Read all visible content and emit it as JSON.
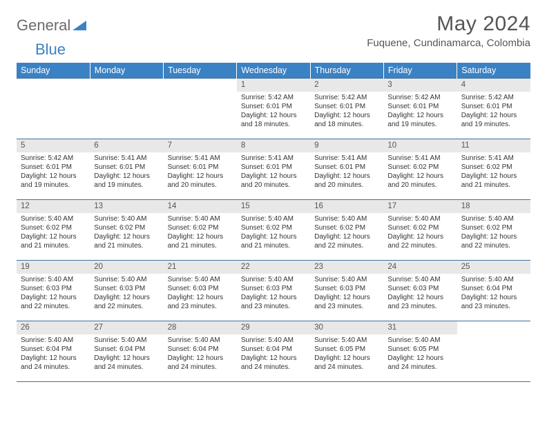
{
  "logo": {
    "text_gray": "General",
    "text_blue": "Blue"
  },
  "title": "May 2024",
  "location": "Fuquene, Cundinamarca, Colombia",
  "colors": {
    "header_bg": "#3b82c4",
    "header_text": "#ffffff",
    "daynum_bg": "#e8e8e8",
    "border": "#3b6fa0",
    "logo_blue": "#3b82c4",
    "text": "#333333"
  },
  "weekdays": [
    "Sunday",
    "Monday",
    "Tuesday",
    "Wednesday",
    "Thursday",
    "Friday",
    "Saturday"
  ],
  "labels": {
    "sunrise": "Sunrise:",
    "sunset": "Sunset:",
    "daylight": "Daylight:"
  },
  "weeks": [
    [
      {
        "empty": true
      },
      {
        "empty": true
      },
      {
        "empty": true
      },
      {
        "n": "1",
        "sunrise": "5:42 AM",
        "sunset": "6:01 PM",
        "daylight": "12 hours and 18 minutes."
      },
      {
        "n": "2",
        "sunrise": "5:42 AM",
        "sunset": "6:01 PM",
        "daylight": "12 hours and 18 minutes."
      },
      {
        "n": "3",
        "sunrise": "5:42 AM",
        "sunset": "6:01 PM",
        "daylight": "12 hours and 19 minutes."
      },
      {
        "n": "4",
        "sunrise": "5:42 AM",
        "sunset": "6:01 PM",
        "daylight": "12 hours and 19 minutes."
      }
    ],
    [
      {
        "n": "5",
        "sunrise": "5:42 AM",
        "sunset": "6:01 PM",
        "daylight": "12 hours and 19 minutes."
      },
      {
        "n": "6",
        "sunrise": "5:41 AM",
        "sunset": "6:01 PM",
        "daylight": "12 hours and 19 minutes."
      },
      {
        "n": "7",
        "sunrise": "5:41 AM",
        "sunset": "6:01 PM",
        "daylight": "12 hours and 20 minutes."
      },
      {
        "n": "8",
        "sunrise": "5:41 AM",
        "sunset": "6:01 PM",
        "daylight": "12 hours and 20 minutes."
      },
      {
        "n": "9",
        "sunrise": "5:41 AM",
        "sunset": "6:01 PM",
        "daylight": "12 hours and 20 minutes."
      },
      {
        "n": "10",
        "sunrise": "5:41 AM",
        "sunset": "6:02 PM",
        "daylight": "12 hours and 20 minutes."
      },
      {
        "n": "11",
        "sunrise": "5:41 AM",
        "sunset": "6:02 PM",
        "daylight": "12 hours and 21 minutes."
      }
    ],
    [
      {
        "n": "12",
        "sunrise": "5:40 AM",
        "sunset": "6:02 PM",
        "daylight": "12 hours and 21 minutes."
      },
      {
        "n": "13",
        "sunrise": "5:40 AM",
        "sunset": "6:02 PM",
        "daylight": "12 hours and 21 minutes."
      },
      {
        "n": "14",
        "sunrise": "5:40 AM",
        "sunset": "6:02 PM",
        "daylight": "12 hours and 21 minutes."
      },
      {
        "n": "15",
        "sunrise": "5:40 AM",
        "sunset": "6:02 PM",
        "daylight": "12 hours and 21 minutes."
      },
      {
        "n": "16",
        "sunrise": "5:40 AM",
        "sunset": "6:02 PM",
        "daylight": "12 hours and 22 minutes."
      },
      {
        "n": "17",
        "sunrise": "5:40 AM",
        "sunset": "6:02 PM",
        "daylight": "12 hours and 22 minutes."
      },
      {
        "n": "18",
        "sunrise": "5:40 AM",
        "sunset": "6:02 PM",
        "daylight": "12 hours and 22 minutes."
      }
    ],
    [
      {
        "n": "19",
        "sunrise": "5:40 AM",
        "sunset": "6:03 PM",
        "daylight": "12 hours and 22 minutes."
      },
      {
        "n": "20",
        "sunrise": "5:40 AM",
        "sunset": "6:03 PM",
        "daylight": "12 hours and 22 minutes."
      },
      {
        "n": "21",
        "sunrise": "5:40 AM",
        "sunset": "6:03 PM",
        "daylight": "12 hours and 23 minutes."
      },
      {
        "n": "22",
        "sunrise": "5:40 AM",
        "sunset": "6:03 PM",
        "daylight": "12 hours and 23 minutes."
      },
      {
        "n": "23",
        "sunrise": "5:40 AM",
        "sunset": "6:03 PM",
        "daylight": "12 hours and 23 minutes."
      },
      {
        "n": "24",
        "sunrise": "5:40 AM",
        "sunset": "6:03 PM",
        "daylight": "12 hours and 23 minutes."
      },
      {
        "n": "25",
        "sunrise": "5:40 AM",
        "sunset": "6:04 PM",
        "daylight": "12 hours and 23 minutes."
      }
    ],
    [
      {
        "n": "26",
        "sunrise": "5:40 AM",
        "sunset": "6:04 PM",
        "daylight": "12 hours and 24 minutes."
      },
      {
        "n": "27",
        "sunrise": "5:40 AM",
        "sunset": "6:04 PM",
        "daylight": "12 hours and 24 minutes."
      },
      {
        "n": "28",
        "sunrise": "5:40 AM",
        "sunset": "6:04 PM",
        "daylight": "12 hours and 24 minutes."
      },
      {
        "n": "29",
        "sunrise": "5:40 AM",
        "sunset": "6:04 PM",
        "daylight": "12 hours and 24 minutes."
      },
      {
        "n": "30",
        "sunrise": "5:40 AM",
        "sunset": "6:05 PM",
        "daylight": "12 hours and 24 minutes."
      },
      {
        "n": "31",
        "sunrise": "5:40 AM",
        "sunset": "6:05 PM",
        "daylight": "12 hours and 24 minutes."
      },
      {
        "empty": true
      }
    ]
  ]
}
